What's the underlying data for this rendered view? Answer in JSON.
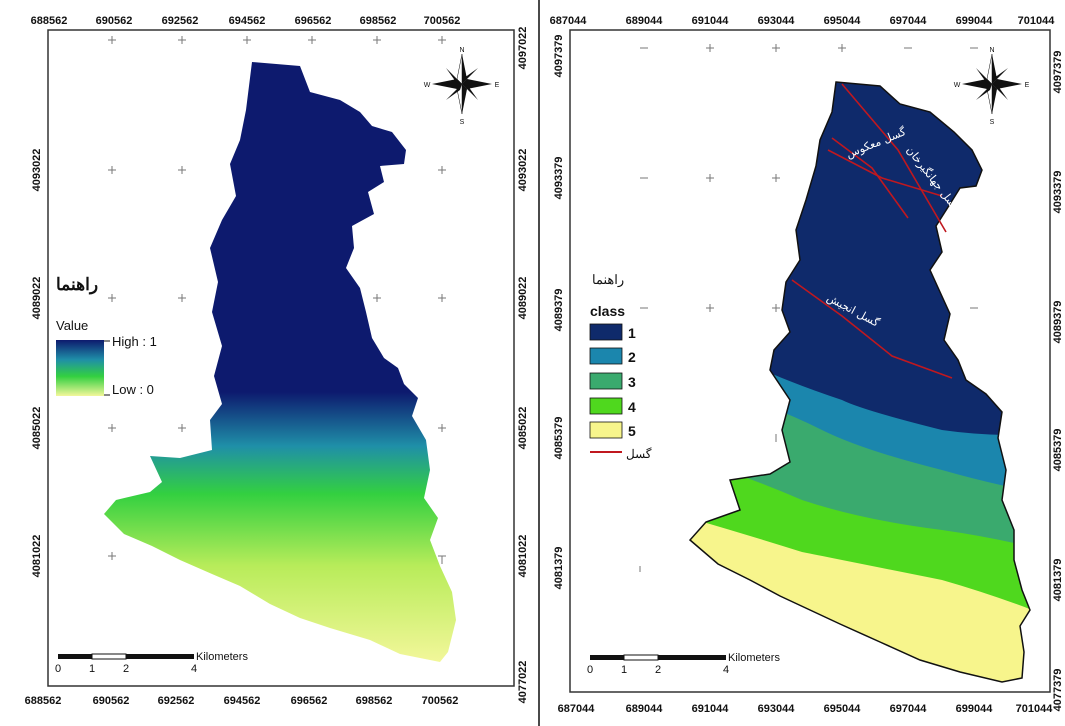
{
  "left_map": {
    "x_ticks": [
      "688562",
      "690562",
      "692562",
      "694562",
      "696562",
      "698562",
      "700562"
    ],
    "y_ticks_left": [
      "4093022",
      "4089022",
      "4085022",
      "4081022"
    ],
    "y_ticks_right": [
      "4097022",
      "4093022",
      "4089022",
      "4085022",
      "4081022",
      "4077022"
    ],
    "legend": {
      "title": "راهنما",
      "subtitle": "Value",
      "high_label": "High : 1",
      "low_label": "Low : 0",
      "high_color": "#0d1a6e",
      "mid_color": "#1f8fa8",
      "low_color": "#f2f79a"
    },
    "scalebar": {
      "labels": [
        "0",
        "1",
        "2",
        "4"
      ],
      "unit": "Kilometers"
    },
    "north_arrow": {
      "n": "N",
      "s": "S",
      "e": "E",
      "w": "W"
    }
  },
  "right_map": {
    "x_ticks": [
      "687044",
      "689044",
      "691044",
      "693044",
      "695044",
      "697044",
      "699044",
      "701044"
    ],
    "y_ticks_left": [
      "4097379",
      "4093379",
      "4089379",
      "4085379",
      "4081379"
    ],
    "y_ticks_right": [
      "4097379",
      "4093379",
      "4089379",
      "4085379",
      "4081379",
      "4077379"
    ],
    "legend": {
      "title": "راهنما",
      "class_title": "class",
      "classes": [
        {
          "label": "1",
          "color": "#0f2a6b"
        },
        {
          "label": "2",
          "color": "#1b86ad"
        },
        {
          "label": "3",
          "color": "#3aaa6e"
        },
        {
          "label": "4",
          "color": "#4fd81e"
        },
        {
          "label": "5",
          "color": "#f7f58c"
        }
      ],
      "fault_label": "گسل",
      "fault_color": "#c0181f"
    },
    "fault_labels": [
      "گسل جهانگیرخان",
      "گسل معکوس",
      "گسل انجیش"
    ],
    "scalebar": {
      "labels": [
        "0",
        "1",
        "2",
        "4"
      ],
      "unit": "Kilometers"
    },
    "north_arrow": {
      "n": "N",
      "s": "S",
      "e": "E",
      "w": "W"
    }
  }
}
